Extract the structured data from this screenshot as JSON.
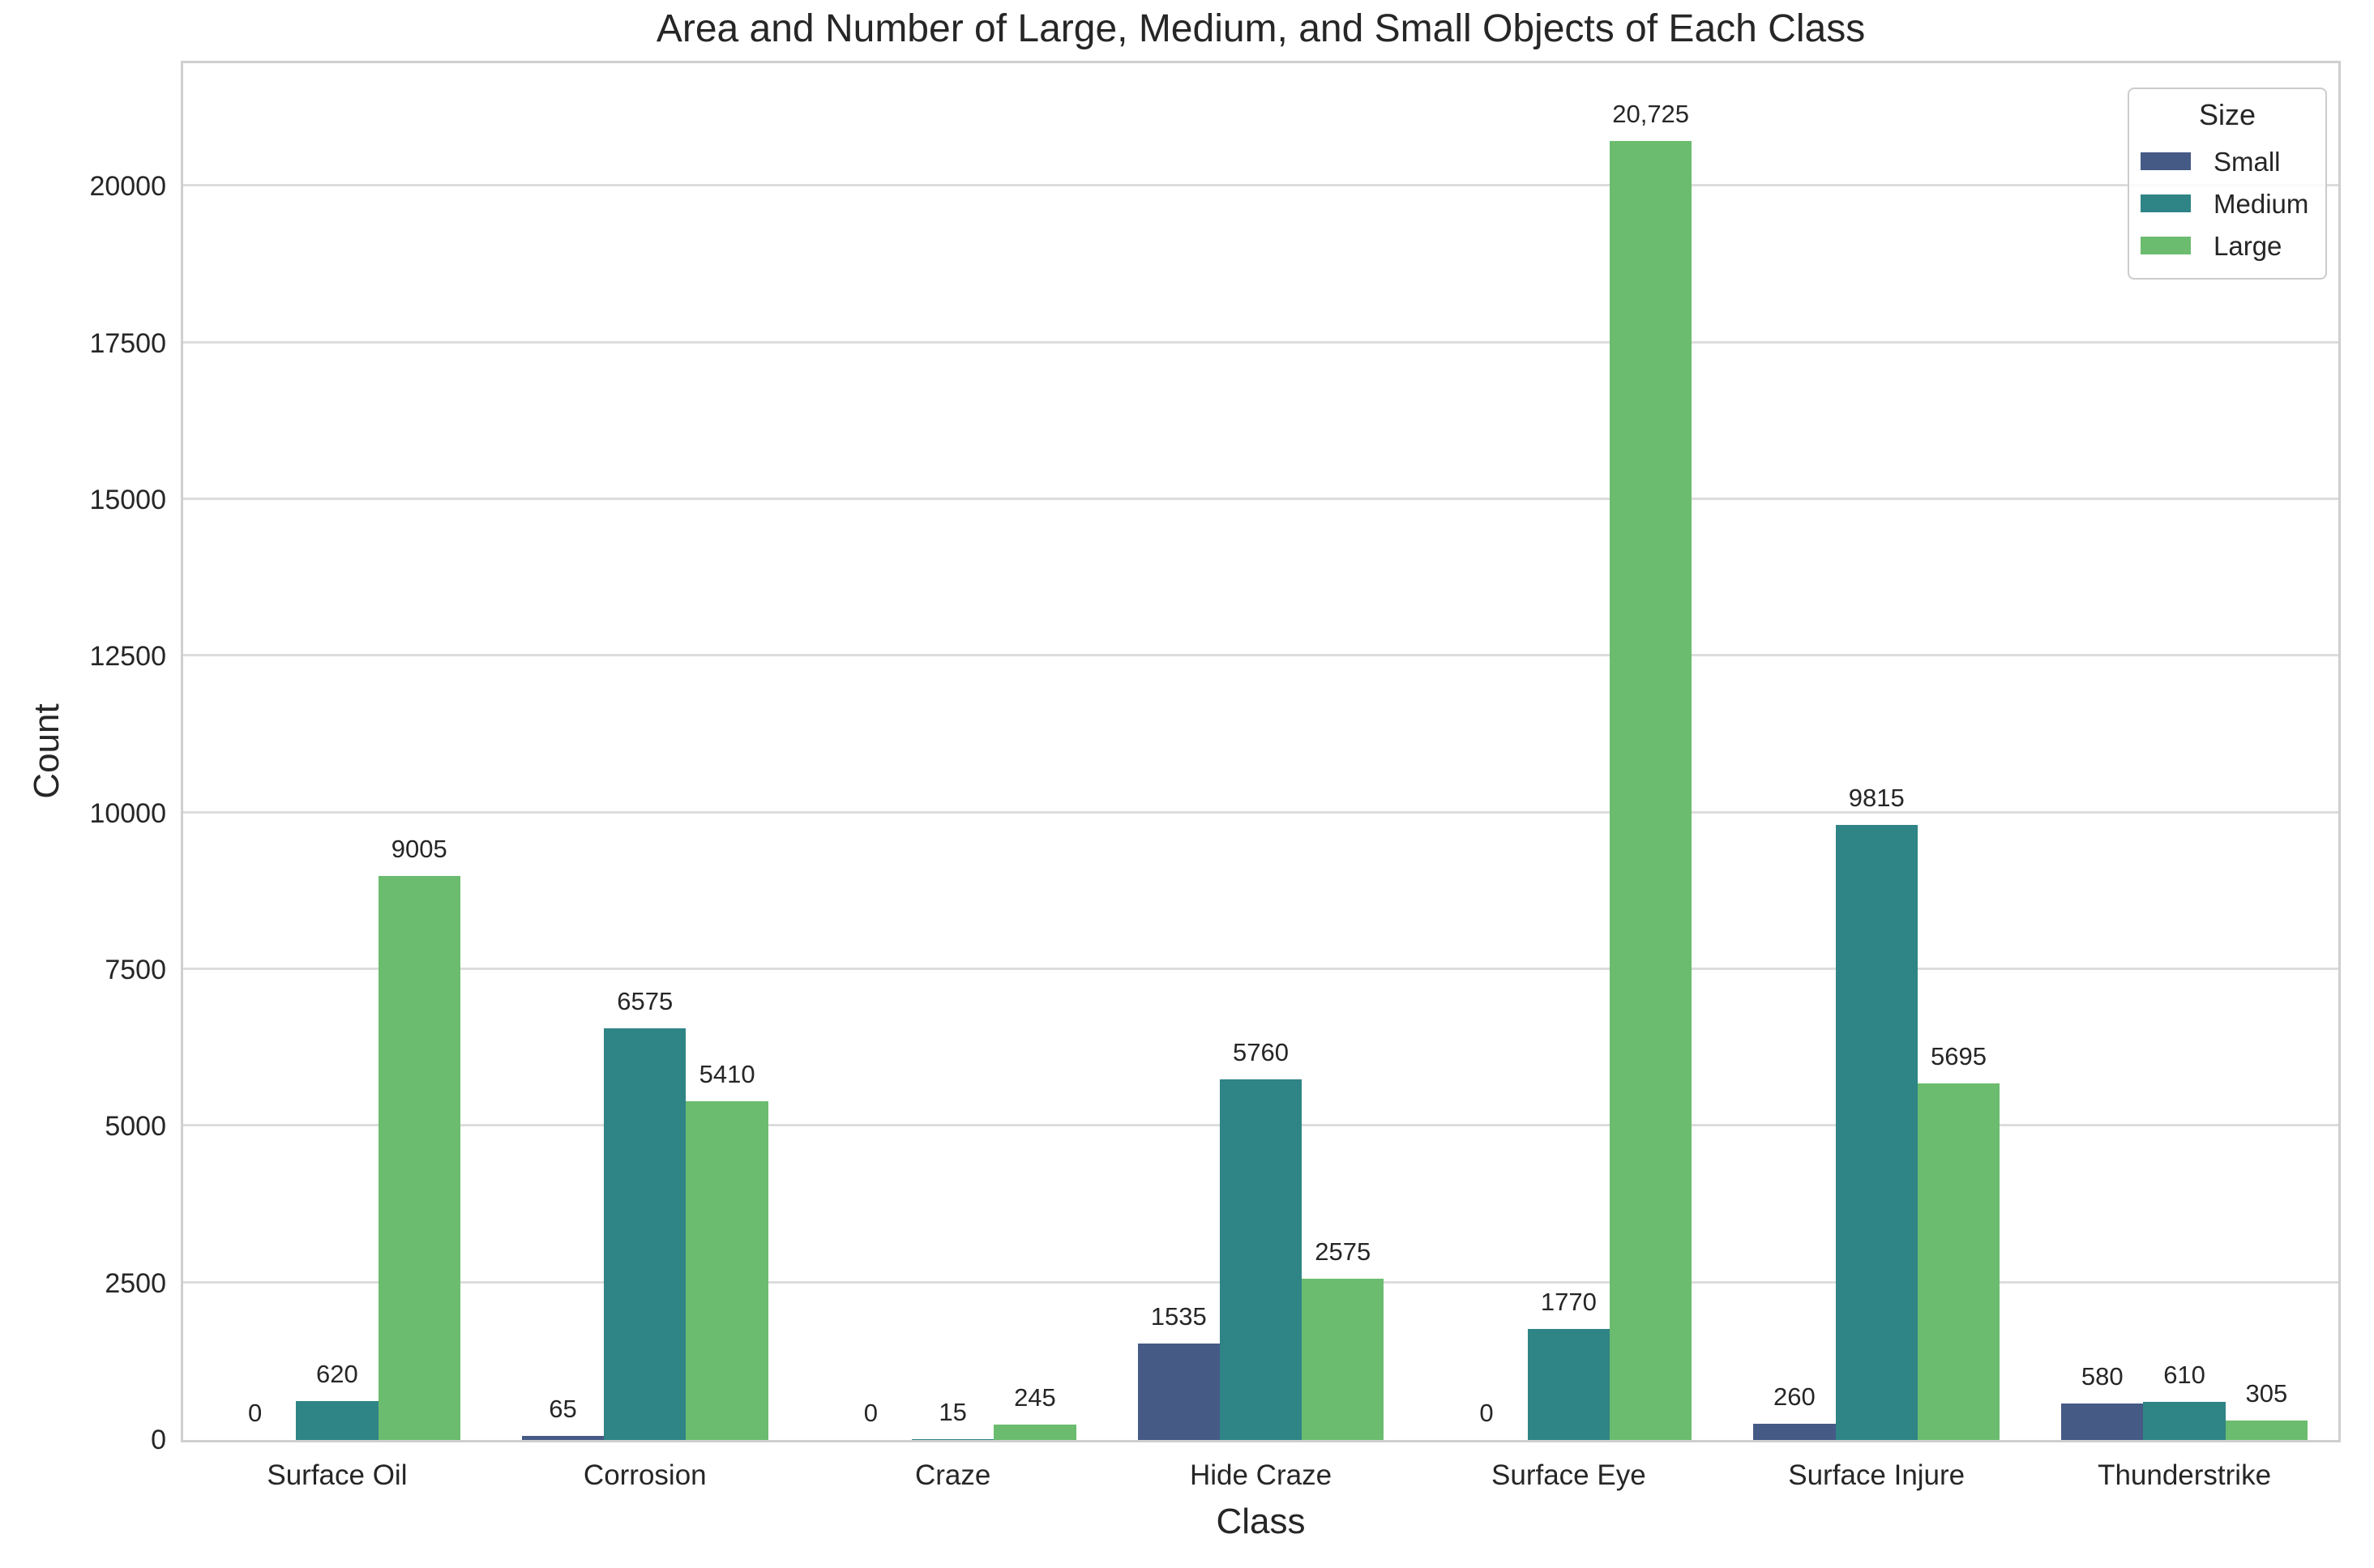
{
  "chart_data": {
    "type": "bar",
    "title": "Area and Number of Large, Medium, and Small Objects of Each Class",
    "xlabel": "Class",
    "ylabel": "Count",
    "categories": [
      "Surface Oil",
      "Corrosion",
      "Craze",
      "Hide Craze",
      "Surface Eye",
      "Surface Injure",
      "Thunderstrike"
    ],
    "series": [
      {
        "name": "Small",
        "color": "#455a85",
        "values": [
          0,
          65,
          0,
          1535,
          0,
          260,
          580
        ],
        "labels": [
          "0",
          "65",
          "0",
          "1535",
          "0",
          "260",
          "580"
        ]
      },
      {
        "name": "Medium",
        "color": "#2f8486",
        "values": [
          620,
          6575,
          15,
          5760,
          1770,
          9815,
          610
        ],
        "labels": [
          "620",
          "6575",
          "15",
          "5760",
          "1770",
          "9815",
          "610"
        ]
      },
      {
        "name": "Large",
        "color": "#6bbc6e",
        "values": [
          9005,
          5410,
          245,
          2575,
          20725,
          5695,
          305
        ],
        "labels": [
          "9005",
          "5410",
          "245",
          "2575",
          "20,725",
          "5695",
          "305"
        ]
      }
    ],
    "legend": {
      "title": "Size",
      "position": "upper right",
      "entries": [
        "Small",
        "Medium",
        "Large"
      ]
    },
    "yticks": [
      0,
      2500,
      5000,
      7500,
      10000,
      12500,
      15000,
      17500,
      20000
    ],
    "ytick_labels": [
      "0",
      "2500",
      "5000",
      "7500",
      "10000",
      "12500",
      "15000",
      "17500",
      "20000"
    ],
    "ylim": [
      0,
      21970
    ],
    "grid": true,
    "colors": {
      "grid": "#dcdcdc",
      "spine": "#cfcfcf",
      "text": "#262626",
      "background": "#ffffff"
    }
  }
}
